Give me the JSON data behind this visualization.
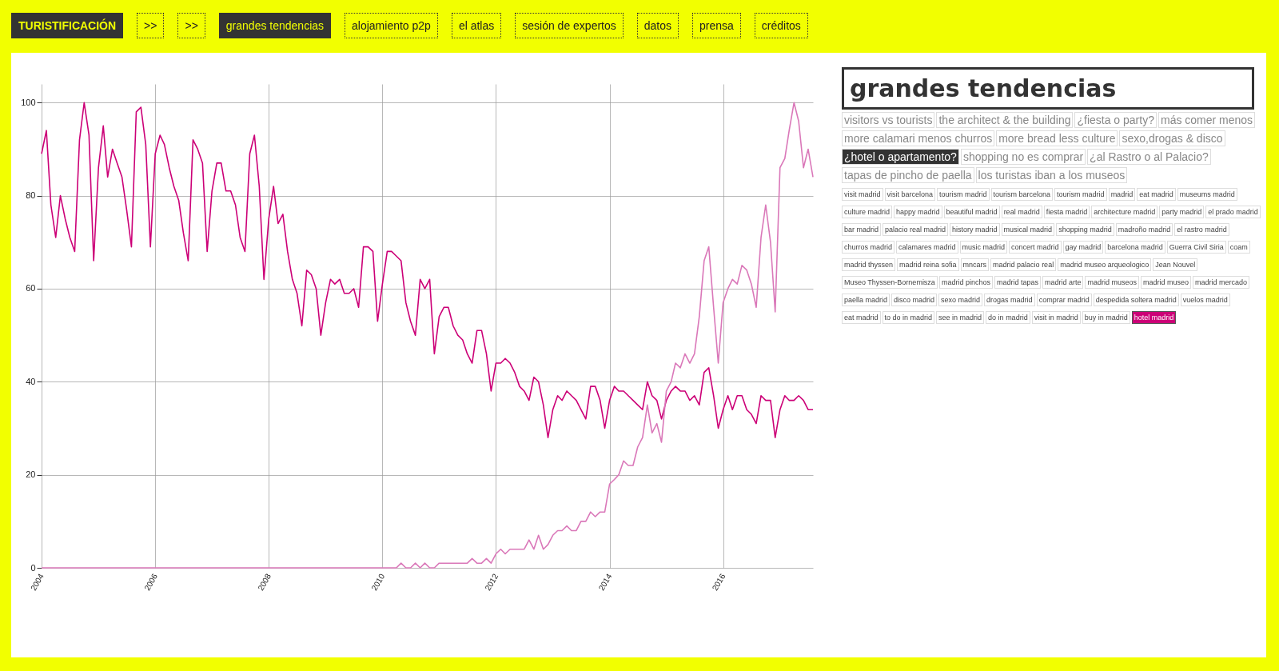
{
  "chart_data": {
    "type": "line",
    "title": "grandes tendencias",
    "annotations": [
      "TURISTIFICACIÓN",
      ">>",
      ">>",
      "grandes tendencias",
      "alojamiento p2p",
      "el atlas",
      "sesión de expertos",
      "datos",
      "prensa",
      "créditos",
      "visitors vs tourists",
      "the architect & the building",
      "¿fiesta o party?",
      "más comer menos",
      "more calamari menos churros",
      "more bread less culture",
      "sexo,drogas & disco",
      "¿hotel o apartamento?",
      "shopping no es comprar",
      "¿al Rastro o al Palacio?",
      "tapas de pincho de paella",
      "los turistas iban a los museos",
      "visit madrid",
      "visit barcelona",
      "tourism madrid",
      "tourism barcelona",
      "tourism madrid",
      "madrid",
      "eat madrid",
      "museums madrid",
      "culture madrid",
      "happy madrid",
      "beautiful madrid",
      "real madrid",
      "fiesta madrid",
      "architecture madrid",
      "party madrid",
      "el prado madrid",
      "bar madrid",
      "palacio real madrid",
      "history madrid",
      "musical madrid",
      "shopping madrid",
      "madroño madrid",
      "el rastro madrid",
      "churros madrid",
      "calamares madrid",
      "music madrid",
      "concert madrid",
      "gay madrid",
      "barcelona madrid",
      "Guerra Civil Siria",
      "coam",
      "madrid thyssen",
      "madrid reina sofia",
      "mncars",
      "madrid palacio real",
      "madrid museo arqueologico",
      "Jean Nouvel",
      "Museo Thyssen-Bornemisza",
      "madrid pinchos",
      "madrid tapas",
      "madrid arte",
      "madrid museos",
      "madrid museo",
      "madrid mercado",
      "paella madrid",
      "disco madrid",
      "sexo madrid",
      "drogas madrid",
      "comprar madrid",
      "despedida soltera madrid",
      "vuelos madrid",
      "eat madrid",
      "to do in madrid",
      "see in madrid",
      "do in madrid",
      "visit in madrid",
      "buy in madrid"
    ],
    "x": [
      "2004-01",
      "2004-02",
      "2004-03",
      "2004-04",
      "2004-05",
      "2004-06",
      "2004-07",
      "2004-08",
      "2004-09",
      "2004-10",
      "2004-11",
      "2004-12",
      "2005-01",
      "2005-02",
      "2005-03",
      "2005-04",
      "2005-05",
      "2005-06",
      "2005-07",
      "2005-08",
      "2005-09",
      "2005-10",
      "2005-11",
      "2005-12",
      "2006-01",
      "2006-02",
      "2006-03",
      "2006-04",
      "2006-05",
      "2006-06",
      "2006-07",
      "2006-08",
      "2006-09",
      "2006-10",
      "2006-11",
      "2006-12",
      "2007-01",
      "2007-02",
      "2007-03",
      "2007-04",
      "2007-05",
      "2007-06",
      "2007-07",
      "2007-08",
      "2007-09",
      "2007-10",
      "2007-11",
      "2007-12",
      "2008-01",
      "2008-02",
      "2008-03",
      "2008-04",
      "2008-05",
      "2008-06",
      "2008-07",
      "2008-08",
      "2008-09",
      "2008-10",
      "2008-11",
      "2008-12",
      "2009-01",
      "2009-02",
      "2009-03",
      "2009-04",
      "2009-05",
      "2009-06",
      "2009-07",
      "2009-08",
      "2009-09",
      "2009-10",
      "2009-11",
      "2009-12",
      "2010-01",
      "2010-02",
      "2010-03",
      "2010-04",
      "2010-05",
      "2010-06",
      "2010-07",
      "2010-08",
      "2010-09",
      "2010-10",
      "2010-11",
      "2010-12",
      "2011-01",
      "2011-02",
      "2011-03",
      "2011-04",
      "2011-05",
      "2011-06",
      "2011-07",
      "2011-08",
      "2011-09",
      "2011-10",
      "2011-11",
      "2011-12",
      "2012-01",
      "2012-02",
      "2012-03",
      "2012-04",
      "2012-05",
      "2012-06",
      "2012-07",
      "2012-08",
      "2012-09",
      "2012-10",
      "2012-11",
      "2012-12",
      "2013-01",
      "2013-02",
      "2013-03",
      "2013-04",
      "2013-05",
      "2013-06",
      "2013-07",
      "2013-08",
      "2013-09",
      "2013-10",
      "2013-11",
      "2013-12",
      "2014-01",
      "2014-02",
      "2014-03",
      "2014-04",
      "2014-05",
      "2014-06",
      "2014-07",
      "2014-08",
      "2014-09",
      "2014-10",
      "2014-11",
      "2014-12",
      "2015-01",
      "2015-02",
      "2015-03",
      "2015-04",
      "2015-05",
      "2015-06",
      "2015-07",
      "2015-08",
      "2015-09",
      "2015-10",
      "2015-11",
      "2015-12",
      "2016-01",
      "2016-02",
      "2016-03",
      "2016-04",
      "2016-05",
      "2016-06",
      "2016-07",
      "2016-08",
      "2016-09",
      "2016-10",
      "2016-11",
      "2016-12",
      "2017-01",
      "2017-02",
      "2017-03",
      "2017-04",
      "2017-05",
      "2017-06",
      "2017-07",
      "2017-08"
    ],
    "series": [
      {
        "name": "hotel madrid",
        "color": "#cc0077",
        "values": [
          89,
          94,
          78,
          71,
          80,
          75,
          71,
          68,
          92,
          100,
          93,
          66,
          86,
          95,
          84,
          90,
          87,
          84,
          77,
          69,
          98,
          99,
          91,
          69,
          89,
          93,
          91,
          86,
          82,
          79,
          72,
          66,
          92,
          90,
          87,
          68,
          81,
          87,
          87,
          81,
          81,
          78,
          71,
          68,
          89,
          93,
          82,
          62,
          75,
          82,
          74,
          76,
          68,
          62,
          59,
          52,
          64,
          63,
          60,
          50,
          57,
          62,
          61,
          62,
          59,
          59,
          60,
          56,
          69,
          69,
          68,
          53,
          61,
          68,
          68,
          67,
          66,
          57,
          53,
          50,
          62,
          60,
          62,
          46,
          54,
          56,
          56,
          52,
          50,
          49,
          46,
          44,
          51,
          51,
          46,
          38,
          44,
          44,
          45,
          44,
          42,
          39,
          38,
          36,
          41,
          40,
          35,
          28,
          34,
          37,
          36,
          38,
          37,
          36,
          34,
          32,
          39,
          39,
          36,
          30,
          36,
          39,
          38,
          38,
          37,
          36,
          35,
          34,
          40,
          37,
          36,
          32,
          36,
          38,
          39,
          38,
          38,
          36,
          37,
          35,
          42,
          43,
          37,
          30,
          34,
          37,
          34,
          37,
          37,
          34,
          33,
          31,
          37,
          36,
          36,
          28,
          34,
          37,
          36,
          36,
          37,
          36,
          34,
          34
        ]
      },
      {
        "color": "#da78b9",
        "values": [
          0,
          0,
          0,
          0,
          0,
          0,
          0,
          0,
          0,
          0,
          0,
          0,
          0,
          0,
          0,
          0,
          0,
          0,
          0,
          0,
          0,
          0,
          0,
          0,
          0,
          0,
          0,
          0,
          0,
          0,
          0,
          0,
          0,
          0,
          0,
          0,
          0,
          0,
          0,
          0,
          0,
          0,
          0,
          0,
          0,
          0,
          0,
          0,
          0,
          0,
          0,
          0,
          0,
          0,
          0,
          0,
          0,
          0,
          0,
          0,
          0,
          0,
          0,
          0,
          0,
          0,
          0,
          0,
          0,
          0,
          0,
          0,
          0,
          0,
          0,
          0,
          1,
          0,
          0,
          1,
          0,
          1,
          0,
          0,
          1,
          1,
          1,
          1,
          1,
          1,
          1,
          2,
          1,
          1,
          2,
          1,
          3,
          4,
          3,
          4,
          4,
          4,
          4,
          6,
          4,
          7,
          4,
          5,
          7,
          8,
          8,
          9,
          8,
          8,
          10,
          10,
          12,
          11,
          12,
          12,
          18,
          19,
          20,
          23,
          22,
          22,
          26,
          28,
          35,
          29,
          31,
          27,
          38,
          40,
          44,
          43,
          46,
          44,
          46,
          54,
          66,
          69,
          56,
          44,
          57,
          60,
          62,
          61,
          65,
          64,
          61,
          56,
          71,
          78,
          70,
          55,
          86,
          88,
          94,
          100,
          96,
          86,
          90,
          84
        ]
      }
    ],
    "xlim": [
      "2004-01",
      "2017-08"
    ],
    "xticks": [
      "2004",
      "2006",
      "2008",
      "2010",
      "2012",
      "2014",
      "2016"
    ],
    "ylim": [
      0,
      104
    ],
    "yticks": [
      0,
      20,
      40,
      60,
      80,
      100
    ],
    "grid": true
  }
}
